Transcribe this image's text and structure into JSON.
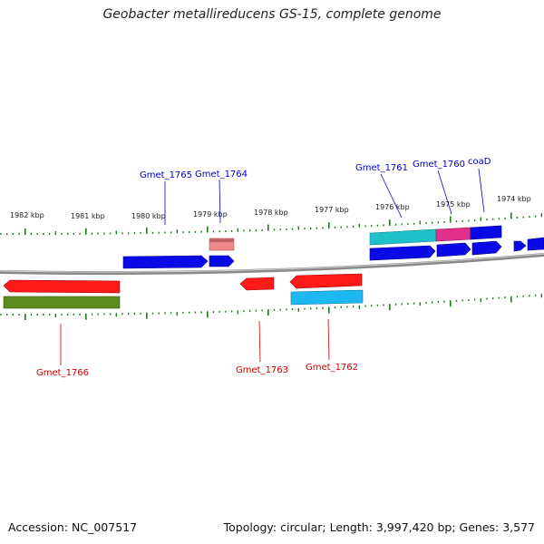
{
  "title": "Geobacter metallireducens GS-15, complete genome",
  "footer": {
    "accession": "Accession: NC_007517",
    "summary": "Topology: circular; Length: 3,997,420 bp; Genes: 3,577"
  },
  "colors": {
    "backbone": "#8a8a8a",
    "ticks": "#1e7a1e",
    "label_top": "#0000cc",
    "label_bottom": "#cc0000"
  },
  "scale_labels": [
    "1982 kbp",
    "1981 kbp",
    "1980 kbp",
    "1979 kbp",
    "1978 kbp",
    "1977 kbp",
    "1976 kbp",
    "1975 kbp",
    "1974 kbp"
  ],
  "gene_labels": {
    "top": [
      "Gmet_1765",
      "Gmet_1764",
      "Gmet_1761",
      "Gmet_1760",
      "coaD"
    ],
    "bottom": [
      "Gmet_1766",
      "Gmet_1763",
      "Gmet_1762"
    ]
  }
}
